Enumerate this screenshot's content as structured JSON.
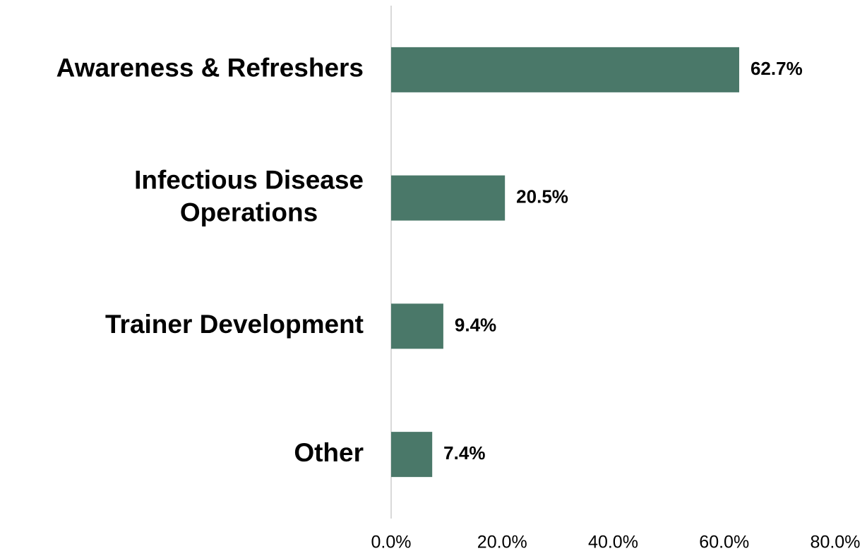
{
  "chart_data": {
    "type": "barh",
    "categories": [
      "Awareness & Refreshers",
      "Infectious Disease Operations",
      "Trainer Development",
      "Other"
    ],
    "values": [
      62.7,
      20.5,
      9.4,
      7.4
    ],
    "value_labels": [
      "62.7%",
      "20.5%",
      "9.4%",
      "7.4%"
    ],
    "color": "#4a7869",
    "xlim": [
      0,
      80
    ],
    "xticks": [
      {
        "value": 0,
        "label": "0.0%"
      },
      {
        "value": 20,
        "label": "20.0%"
      },
      {
        "value": 40,
        "label": "40.0%"
      },
      {
        "value": 60,
        "label": "60.0%"
      },
      {
        "value": 80,
        "label": "80.0%"
      }
    ]
  }
}
